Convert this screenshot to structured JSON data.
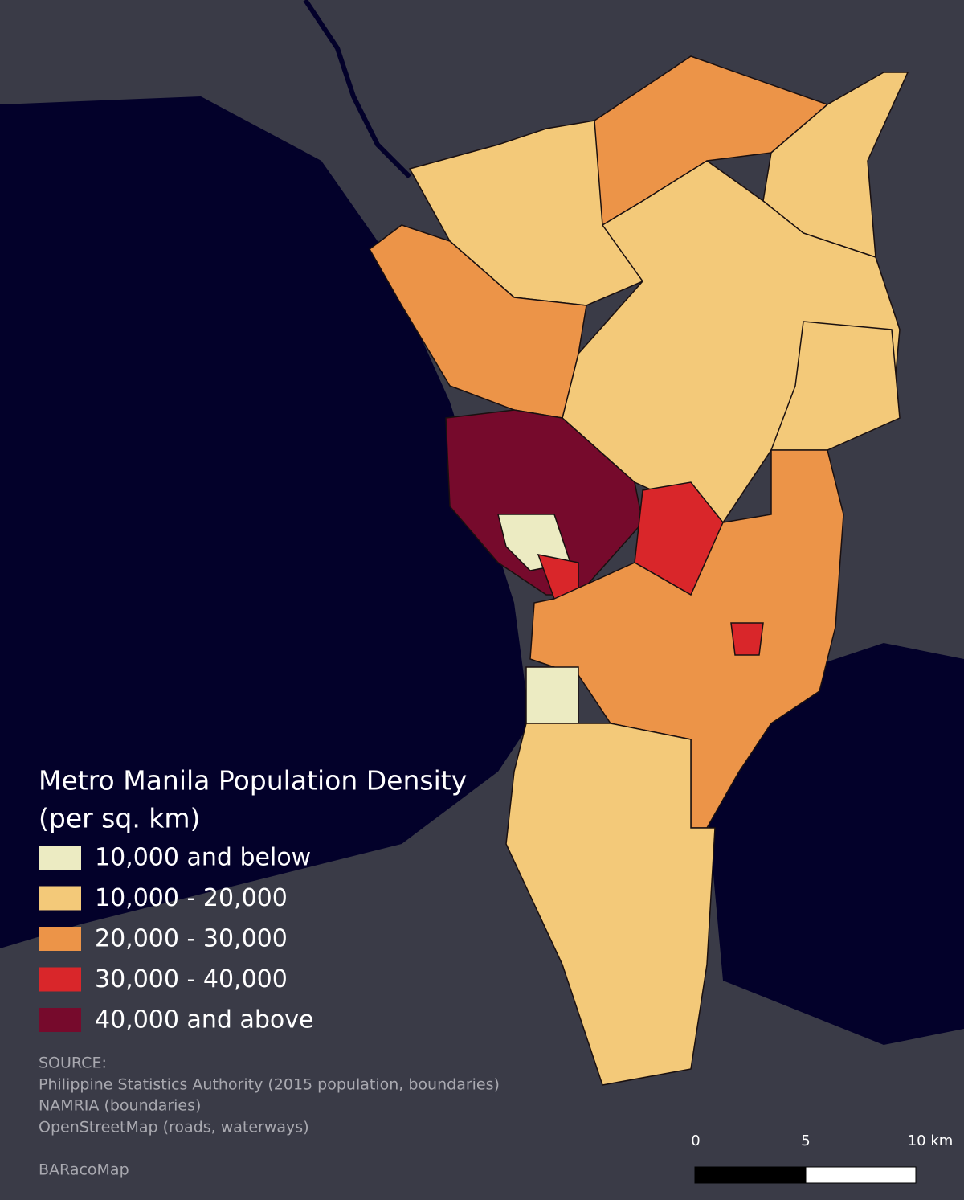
{
  "legend": {
    "title": [
      "Metro Manila Population Density",
      "(per sq. km)"
    ],
    "items": [
      {
        "label": "10,000 and below",
        "color": "#ecebc2"
      },
      {
        "label": "10,000 - 20,000",
        "color": "#f3c979"
      },
      {
        "label": "20,000 - 30,000",
        "color": "#ec9448"
      },
      {
        "label": "30,000 - 40,000",
        "color": "#d9262a"
      },
      {
        "label": "40,000 and above",
        "color": "#760a2c"
      }
    ]
  },
  "source": {
    "heading": "SOURCE:",
    "lines": [
      "Philippine Statistics Authority (2015 population, boundaries)",
      "NAMRIA (boundaries)",
      "OpenStreetMap (roads, waterways)"
    ]
  },
  "credit": "BARacoMap",
  "scale_bar": {
    "labels": [
      "0",
      "5",
      "10 km"
    ]
  }
}
